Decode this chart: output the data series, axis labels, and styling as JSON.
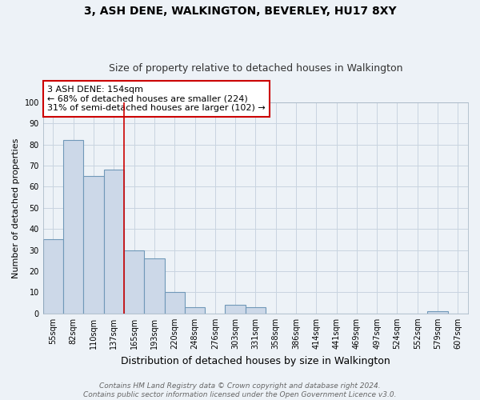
{
  "title": "3, ASH DENE, WALKINGTON, BEVERLEY, HU17 8XY",
  "subtitle": "Size of property relative to detached houses in Walkington",
  "xlabel": "Distribution of detached houses by size in Walkington",
  "ylabel": "Number of detached properties",
  "bar_labels": [
    "55sqm",
    "82sqm",
    "110sqm",
    "137sqm",
    "165sqm",
    "193sqm",
    "220sqm",
    "248sqm",
    "276sqm",
    "303sqm",
    "331sqm",
    "358sqm",
    "386sqm",
    "414sqm",
    "441sqm",
    "469sqm",
    "497sqm",
    "524sqm",
    "552sqm",
    "579sqm",
    "607sqm"
  ],
  "bar_values": [
    35,
    82,
    65,
    68,
    30,
    26,
    10,
    3,
    0,
    4,
    3,
    0,
    0,
    0,
    0,
    0,
    0,
    0,
    0,
    1,
    0
  ],
  "bar_color": "#ccd8e8",
  "bar_edgecolor": "#7098b8",
  "red_line_x": 3.5,
  "annotation_text": "3 ASH DENE: 154sqm\n← 68% of detached houses are smaller (224)\n31% of semi-detached houses are larger (102) →",
  "annotation_box_color": "#ffffff",
  "annotation_box_edgecolor": "#cc0000",
  "ylim": [
    0,
    100
  ],
  "yticks": [
    0,
    10,
    20,
    30,
    40,
    50,
    60,
    70,
    80,
    90,
    100
  ],
  "grid_color": "#c8d4e0",
  "background_color": "#edf2f7",
  "footer_line1": "Contains HM Land Registry data © Crown copyright and database right 2024.",
  "footer_line2": "Contains public sector information licensed under the Open Government Licence v3.0.",
  "title_fontsize": 10,
  "subtitle_fontsize": 9,
  "xlabel_fontsize": 9,
  "ylabel_fontsize": 8,
  "tick_fontsize": 7,
  "footer_fontsize": 6.5,
  "annotation_fontsize": 8
}
